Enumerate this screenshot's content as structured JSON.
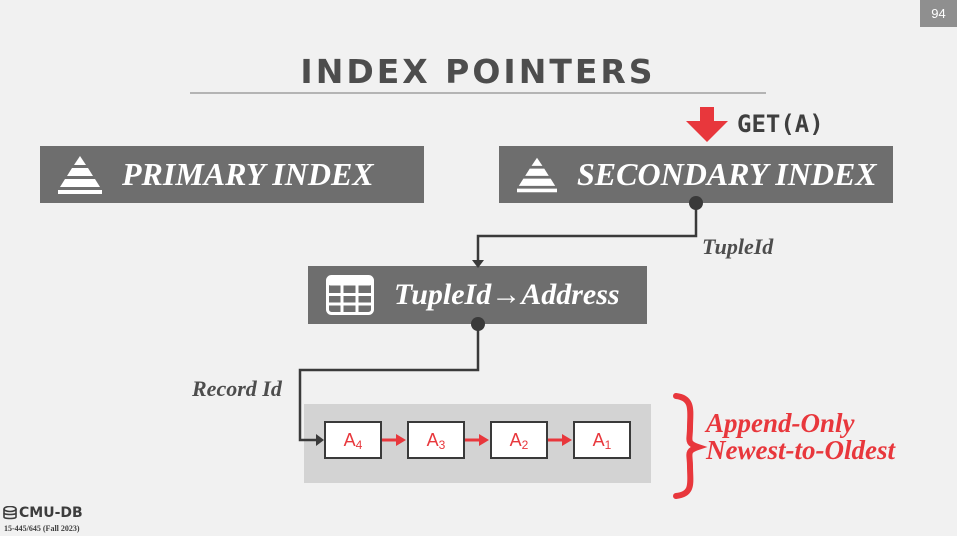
{
  "slide": {
    "number": "94",
    "title": "INDEX POINTERS"
  },
  "primary_index": {
    "label": "PRIMARY INDEX",
    "icon": "pyramid-icon"
  },
  "secondary_index": {
    "label": "SECONDARY INDEX",
    "icon": "pyramid-icon"
  },
  "query": {
    "label": "GET(A)",
    "icon": "down-arrow-icon"
  },
  "mapping_table": {
    "label": "TupleId→Address",
    "icon": "table-icon"
  },
  "labels": {
    "tuple_id": "TupleId",
    "record_id": "Record Id"
  },
  "version_chain": [
    {
      "base": "A",
      "sub": "4"
    },
    {
      "base": "A",
      "sub": "3"
    },
    {
      "base": "A",
      "sub": "2"
    },
    {
      "base": "A",
      "sub": "1"
    }
  ],
  "note": {
    "line1": "Append-Only",
    "line2": "Newest-to-Oldest"
  },
  "footer": {
    "logo": "CMU-DB",
    "course": "15-445/645 (Fall 2023)"
  },
  "colors": {
    "accent": "#e8373c",
    "box": "#6e6e6e",
    "background": "#f1f1f1"
  }
}
